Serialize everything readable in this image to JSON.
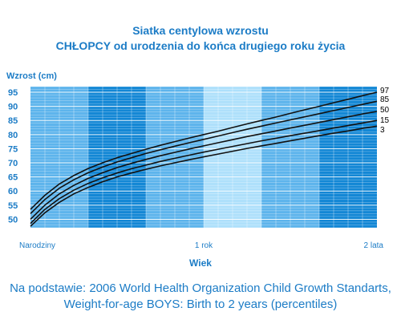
{
  "chart_data": {
    "type": "line",
    "title": "Siatka centylowa wzrostu",
    "subtitle": "CHŁOPCY od urodzenia do końca drugiego roku życia",
    "ylabel": "Wzrost (cm)",
    "xlabel": "Wiek",
    "y_ticks": [
      50,
      55,
      60,
      65,
      70,
      75,
      80,
      85,
      90,
      95
    ],
    "ylim": [
      47,
      97
    ],
    "x_unit": "months",
    "xlim": [
      0,
      24
    ],
    "x_ticks": [
      {
        "x": 0,
        "label": "Narodziny"
      },
      {
        "x": 12,
        "label": "1 rok"
      },
      {
        "x": 24,
        "label": "2 lata"
      }
    ],
    "x": [
      0,
      1,
      2,
      3,
      4,
      5,
      6,
      7,
      8,
      9,
      10,
      11,
      12,
      13,
      14,
      15,
      16,
      17,
      18,
      19,
      20,
      21,
      22,
      23,
      24
    ],
    "series": [
      {
        "name": "97",
        "values": [
          53.5,
          58.5,
          62.5,
          65.5,
          68.0,
          70.0,
          71.8,
          73.3,
          74.8,
          76.2,
          77.5,
          78.8,
          80.0,
          81.2,
          82.5,
          83.8,
          85.0,
          86.2,
          87.5,
          88.8,
          90.0,
          91.3,
          92.5,
          93.8,
          95.0
        ]
      },
      {
        "name": "85",
        "values": [
          52.0,
          57.0,
          61.0,
          64.0,
          66.5,
          68.5,
          70.3,
          71.8,
          73.3,
          74.6,
          75.9,
          77.1,
          78.3,
          79.5,
          80.7,
          81.9,
          83.0,
          84.1,
          85.2,
          86.3,
          87.4,
          88.5,
          89.6,
          90.7,
          91.8
        ]
      },
      {
        "name": "50",
        "values": [
          50.0,
          55.0,
          59.0,
          62.0,
          64.5,
          66.5,
          68.3,
          69.8,
          71.2,
          72.5,
          73.7,
          74.9,
          76.0,
          77.1,
          78.2,
          79.3,
          80.3,
          81.3,
          82.3,
          83.3,
          84.3,
          85.3,
          86.3,
          87.3,
          88.2
        ]
      },
      {
        "name": "15",
        "values": [
          48.5,
          53.5,
          57.3,
          60.3,
          62.7,
          64.7,
          66.4,
          67.9,
          69.2,
          70.5,
          71.6,
          72.7,
          73.8,
          74.8,
          75.8,
          76.8,
          77.8,
          78.7,
          79.6,
          80.5,
          81.4,
          82.3,
          83.2,
          84.1,
          85.0
        ]
      },
      {
        "name": "3",
        "values": [
          47.5,
          52.3,
          56.0,
          59.0,
          61.3,
          63.3,
          65.0,
          66.4,
          67.7,
          68.9,
          70.0,
          71.1,
          72.1,
          73.1,
          74.1,
          75.1,
          76.0,
          76.9,
          77.8,
          78.7,
          79.6,
          80.5,
          81.3,
          82.2,
          83.0
        ]
      }
    ],
    "background_bands": [
      {
        "from": 0,
        "to": 4,
        "color": "#5db4ec"
      },
      {
        "from": 4,
        "to": 8,
        "color": "#1387d5"
      },
      {
        "from": 8,
        "to": 12,
        "color": "#5db4ec"
      },
      {
        "from": 12,
        "to": 16,
        "color": "#aee0fb"
      },
      {
        "from": 16,
        "to": 20,
        "color": "#5db4ec"
      },
      {
        "from": 20,
        "to": 24,
        "color": "#1387d5"
      }
    ],
    "grid": true,
    "legend": "right end of lines"
  },
  "colors": {
    "text": "#1c7cc6",
    "line": "#111111",
    "grid": "#ffffff"
  },
  "footnote": {
    "line1": "Na podstawie: 2006 World Health Organization Child Growth Standarts,",
    "line2": "Weight-for-age BOYS: Birth to 2 years (percentiles)"
  }
}
